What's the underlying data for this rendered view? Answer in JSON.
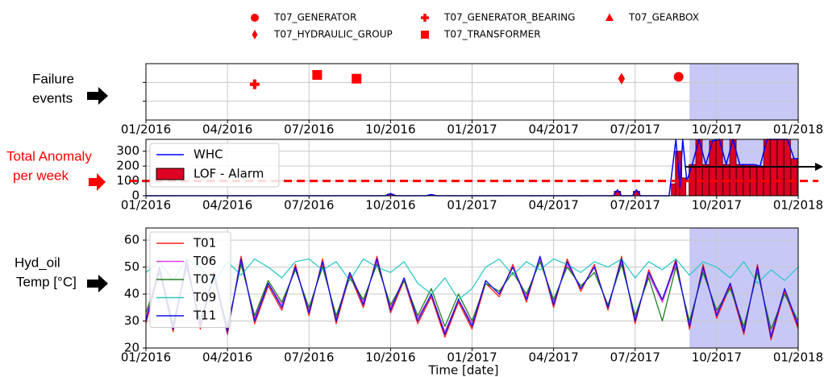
{
  "chart_data": [
    {
      "type": "scatter",
      "annotation": [
        "Failure",
        "events"
      ],
      "xlim": [
        0,
        24
      ],
      "xticks": [
        {
          "value": 0,
          "label": "01/2016"
        },
        {
          "value": 3,
          "label": "04/2016"
        },
        {
          "value": 6,
          "label": "07/2016"
        },
        {
          "value": 9,
          "label": "10/2016"
        },
        {
          "value": 12,
          "label": "01/2017"
        },
        {
          "value": 15,
          "label": "04/2017"
        },
        {
          "value": 18,
          "label": "07/2017"
        },
        {
          "value": 21,
          "label": "10/2017"
        },
        {
          "value": 24,
          "label": "01/2018"
        }
      ],
      "ylim": [
        0,
        3
      ],
      "yticks": [
        1,
        2
      ],
      "ytick_labels": false,
      "grid": true,
      "highlight": [
        20,
        24
      ],
      "highlight_color": "#c8c8f6",
      "legend": "top",
      "series": [
        {
          "name": "T07_GENERATOR",
          "color": "#ff0000",
          "marker": "circle",
          "x": [
            19.6
          ],
          "values": [
            2.3
          ]
        },
        {
          "name": "T07_GENERATOR_BEARING",
          "color": "#ff0000",
          "marker": "plus",
          "x": [
            4.0
          ],
          "values": [
            1.9
          ]
        },
        {
          "name": "T07_GEARBOX",
          "color": "#ff0000",
          "marker": "triangle",
          "x": [],
          "values": []
        },
        {
          "name": "T07_HYDRAULIC_GROUP",
          "color": "#ff0000",
          "marker": "diamond",
          "x": [
            17.5
          ],
          "values": [
            2.2
          ]
        },
        {
          "name": "T07_TRANSFORMER",
          "color": "#ff0000",
          "marker": "square",
          "x": [
            6.3,
            7.75
          ],
          "values": [
            2.4,
            2.2
          ]
        }
      ]
    },
    {
      "type": "bar_line",
      "annotation": [
        "Total Anomaly",
        "per week"
      ],
      "annotation_color": "#ff0000",
      "xlim": [
        0,
        24
      ],
      "xticks": [
        {
          "value": 0,
          "label": "01/2016"
        },
        {
          "value": 3,
          "label": "04/2016"
        },
        {
          "value": 6,
          "label": "07/2016"
        },
        {
          "value": 9,
          "label": "10/2016"
        },
        {
          "value": 12,
          "label": "01/2017"
        },
        {
          "value": 15,
          "label": "04/2017"
        },
        {
          "value": 18,
          "label": "07/2017"
        },
        {
          "value": 21,
          "label": "10/2017"
        },
        {
          "value": 24,
          "label": "01/2018"
        }
      ],
      "ylim": [
        0,
        380
      ],
      "yticks": [
        0,
        100,
        200,
        300
      ],
      "grid": true,
      "highlight": [
        20,
        24
      ],
      "highlight_color": "#c8c8f6",
      "legend": "upper left",
      "threshold": 100,
      "threshold_color": "#ff0000",
      "series": [
        {
          "name": "WHC",
          "kind": "line",
          "color": "#0000ff",
          "x": [
            0,
            8.8,
            9.0,
            9.2,
            10.3,
            10.5,
            10.7,
            17.2,
            17.35,
            17.5,
            17.9,
            18.05,
            18.2,
            19.25,
            19.5,
            19.65,
            19.75,
            19.9,
            20.1,
            20.35,
            20.6,
            20.85,
            21.1,
            21.35,
            21.6,
            21.85,
            22.1,
            22.35,
            22.6,
            22.85,
            23.1,
            23.35,
            23.6,
            23.85,
            24
          ],
          "values": [
            0,
            0,
            15,
            0,
            0,
            8,
            0,
            0,
            40,
            0,
            0,
            40,
            0,
            0,
            380,
            60,
            380,
            100,
            210,
            380,
            210,
            370,
            380,
            210,
            380,
            210,
            210,
            210,
            200,
            380,
            380,
            380,
            380,
            250,
            250
          ]
        },
        {
          "name": "LOF - Alarm",
          "kind": "bar",
          "color": "#dd0022",
          "x": [
            9.0,
            17.35,
            18.05,
            19.45,
            19.6,
            19.75,
            20.1,
            20.35,
            20.6,
            20.85,
            21.1,
            21.35,
            21.6,
            21.85,
            22.1,
            22.35,
            22.6,
            22.85,
            23.1,
            23.35,
            23.6,
            23.85
          ],
          "values": [
            10,
            30,
            30,
            80,
            300,
            120,
            210,
            380,
            210,
            370,
            380,
            210,
            380,
            210,
            210,
            210,
            200,
            380,
            380,
            380,
            380,
            250
          ]
        }
      ]
    },
    {
      "type": "line",
      "annotation": [
        "Hyd_oil",
        "Temp [°C]"
      ],
      "x_label": "Time [date]",
      "xlim": [
        0,
        24
      ],
      "xticks": [
        {
          "value": 0,
          "label": "01/2016"
        },
        {
          "value": 3,
          "label": "04/2016"
        },
        {
          "value": 6,
          "label": "07/2016"
        },
        {
          "value": 9,
          "label": "10/2016"
        },
        {
          "value": 12,
          "label": "01/2017"
        },
        {
          "value": 15,
          "label": "04/2017"
        },
        {
          "value": 18,
          "label": "07/2017"
        },
        {
          "value": 21,
          "label": "10/2017"
        },
        {
          "value": 24,
          "label": "01/2018"
        }
      ],
      "ylim": [
        20,
        64.5
      ],
      "yticks": [
        20,
        30,
        40,
        50,
        60
      ],
      "grid": true,
      "highlight": [
        20,
        24
      ],
      "highlight_color": "#c8c8f6",
      "legend": "upper left",
      "x": [
        0,
        0.5,
        1,
        1.5,
        2,
        2.5,
        3,
        3.5,
        4,
        4.5,
        5,
        5.5,
        6,
        6.5,
        7,
        7.5,
        8,
        8.5,
        9,
        9.5,
        10,
        10.5,
        11,
        11.5,
        12,
        12.5,
        13,
        13.5,
        14,
        14.5,
        15,
        15.5,
        16,
        16.5,
        17,
        17.5,
        18,
        18.5,
        19,
        19.5,
        20,
        20.5,
        21,
        21.5,
        22,
        22.5,
        23,
        23.5,
        24
      ],
      "series": [
        {
          "name": "T01",
          "color": "#ff2020",
          "values": [
            29,
            49,
            26,
            53,
            27,
            47,
            25,
            54,
            29,
            43,
            34,
            51,
            32,
            53,
            29,
            47,
            35,
            54,
            33,
            45,
            29,
            39,
            24,
            37,
            27,
            44,
            39,
            51,
            37,
            54,
            35,
            53,
            41,
            51,
            34,
            54,
            29,
            49,
            37,
            53,
            27,
            51,
            31,
            43,
            25,
            51,
            23,
            41,
            27
          ]
        },
        {
          "name": "T06",
          "color": "#e040e0",
          "values": [
            31,
            50,
            28,
            51,
            29,
            48,
            27,
            52,
            31,
            44,
            36,
            50,
            34,
            51,
            31,
            48,
            37,
            52,
            35,
            46,
            31,
            40,
            26,
            38,
            29,
            45,
            40,
            50,
            39,
            53,
            37,
            51,
            42,
            50,
            35,
            52,
            31,
            47,
            37,
            51,
            29,
            49,
            33,
            44,
            27,
            49,
            25,
            42,
            29
          ]
        },
        {
          "name": "T07",
          "color": "#208020",
          "values": [
            33,
            48,
            29,
            50,
            30,
            46,
            28,
            51,
            32,
            45,
            37,
            49,
            35,
            50,
            32,
            46,
            38,
            51,
            36,
            45,
            32,
            42,
            28,
            40,
            30,
            44,
            41,
            48,
            40,
            52,
            38,
            50,
            43,
            48,
            36,
            51,
            32,
            46,
            30,
            50,
            30,
            48,
            34,
            42,
            28,
            48,
            27,
            40,
            30
          ]
        },
        {
          "name": "T09",
          "color": "#30c8c8",
          "values": [
            48,
            52,
            45,
            53,
            50,
            44,
            52,
            47,
            53,
            50,
            46,
            52,
            53,
            49,
            52,
            45,
            53,
            50,
            48,
            52,
            44,
            40,
            46,
            38,
            42,
            50,
            53,
            47,
            52,
            49,
            53,
            51,
            48,
            52,
            50,
            53,
            46,
            52,
            49,
            53,
            47,
            52,
            50,
            46,
            52,
            44,
            49,
            45,
            50
          ]
        },
        {
          "name": "T11",
          "color": "#1010f0",
          "values": [
            30,
            50,
            27,
            52,
            28,
            48,
            26,
            53,
            30,
            44,
            35,
            50,
            33,
            52,
            30,
            48,
            36,
            53,
            34,
            46,
            30,
            40,
            25,
            38,
            28,
            45,
            40,
            50,
            38,
            54,
            36,
            52,
            42,
            50,
            35,
            53,
            30,
            48,
            38,
            52,
            28,
            50,
            32,
            44,
            26,
            50,
            24,
            42,
            28
          ]
        }
      ]
    }
  ]
}
